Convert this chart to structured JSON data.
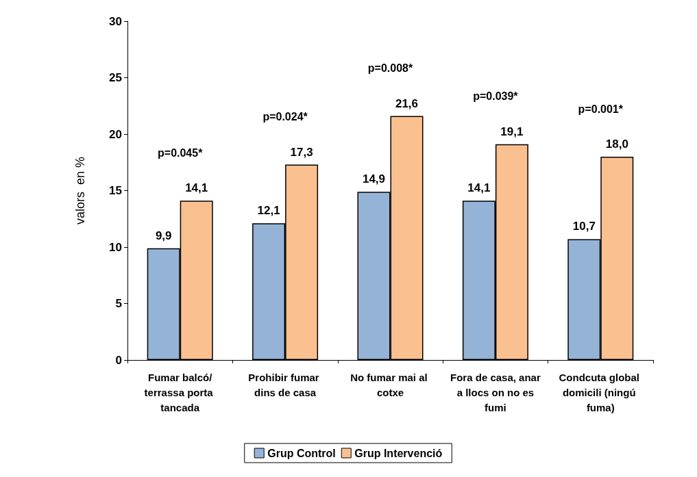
{
  "chart_data": {
    "type": "bar",
    "ylabel": "valors  en %",
    "categories": [
      "Fumar balcó/terrassa porta tancada",
      "Prohibir fumar dins de casa",
      "No fumar mai al cotxe",
      "Fora de casa, anar a llocs on no es fumi",
      "Condcuta global domicili (ningú fuma)"
    ],
    "series": [
      {
        "name": "Grup Control",
        "color": "#95b3d7",
        "values": [
          9.9,
          12.1,
          14.9,
          14.1,
          10.7
        ],
        "value_labels": [
          "9,9",
          "12,1",
          "14,9",
          "14,1",
          "10,7"
        ]
      },
      {
        "name": "Grup Intervenció",
        "color": "#fac090",
        "values": [
          14.1,
          17.3,
          21.6,
          19.1,
          18.0
        ],
        "value_labels": [
          "14,1",
          "17,3",
          "21,6",
          "19,1",
          "18,0"
        ]
      }
    ],
    "ylim": [
      0,
      30
    ],
    "yticks": [
      0,
      5,
      10,
      15,
      20,
      25,
      30
    ],
    "grid": false,
    "legend": "bottom",
    "annotations": [
      "p=0.045*",
      "p=0.024*",
      "p=0.008*",
      "p=0.039*",
      "p=0.001*"
    ]
  }
}
